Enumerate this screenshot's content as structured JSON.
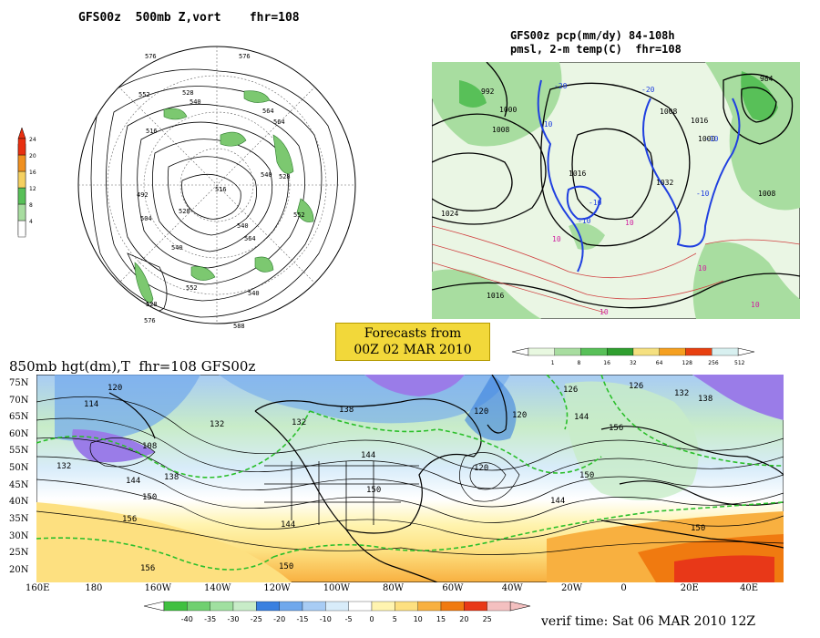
{
  "panels": {
    "polar": {
      "title": "GFS00z  500mb Z,vort    fhr=108",
      "scale_colors": [
        "#ffffff",
        "#a8dda0",
        "#58c058",
        "#f5d060",
        "#f09020",
        "#e83010"
      ],
      "scale_ticks": [
        "4",
        "8",
        "12",
        "16",
        "20",
        "24"
      ],
      "contour_labels": [
        "576",
        "576",
        "552",
        "528",
        "540",
        "516",
        "564",
        "564",
        "528",
        "540",
        "492",
        "504",
        "516",
        "528",
        "540",
        "552",
        "564",
        "540",
        "552",
        "540",
        "528",
        "588",
        "576"
      ]
    },
    "pcp": {
      "title_line1": "GFS00z pcp(mm/dy) 84-108h",
      "title_line2": "pmsl, 2-m temp(C)  fhr=108",
      "scale_colors": [
        "#e8f8e0",
        "#a8dda0",
        "#58c058",
        "#2f9f2f",
        "#f5e080",
        "#f5a020",
        "#e84010",
        "#d8f0f0"
      ],
      "scale_ticks": [
        "1",
        "8",
        "16",
        "32",
        "64",
        "128",
        "256",
        "512"
      ],
      "pressure_labels": [
        "992",
        "1000",
        "1008",
        "1016",
        "1024",
        "1032",
        "1008",
        "1016",
        "984",
        "1000",
        "1008",
        "1016"
      ],
      "temp_labels": [
        "-20",
        "-10",
        "-10",
        "-10",
        "-20",
        "-10",
        "-10",
        "10",
        "10",
        "10",
        "10",
        "10"
      ]
    },
    "banner": {
      "line1": "Forecasts from",
      "line2": "00Z 02 MAR 2010"
    },
    "map850": {
      "title": "850mb hgt(dm),T  fhr=108 GFS00z",
      "lat_labels": [
        "75N",
        "70N",
        "65N",
        "60N",
        "55N",
        "50N",
        "45N",
        "40N",
        "35N",
        "30N",
        "25N",
        "20N"
      ],
      "lon_labels": [
        "160E",
        "180",
        "160W",
        "140W",
        "120W",
        "100W",
        "80W",
        "60W",
        "40W",
        "20W",
        "0",
        "20E",
        "40E"
      ],
      "height_labels": [
        "120",
        "114",
        "108",
        "132",
        "138",
        "144",
        "150",
        "156",
        "132",
        "144",
        "156",
        "150",
        "120",
        "126",
        "120",
        "132",
        "138",
        "150",
        "144",
        "120",
        "126",
        "132",
        "138",
        "144",
        "156",
        "150",
        "144",
        "150"
      ],
      "temp_scale_colors": [
        "#40c040",
        "#70d070",
        "#a0e0a0",
        "#c8ecc8",
        "#3a80e0",
        "#70a8ec",
        "#a8ccf4",
        "#d8ecfa",
        "#ffffff",
        "#fff4b0",
        "#fde080",
        "#f8b040",
        "#f07a10",
        "#e83818",
        "#f4c0c0"
      ],
      "temp_scale_ticks": [
        "-40",
        "-35",
        "-30",
        "-25",
        "-20",
        "-15",
        "-10",
        "-5",
        "0",
        "5",
        "10",
        "15",
        "20",
        "25"
      ]
    },
    "verif": {
      "text": "verif time: Sat 06 MAR 2010 12Z"
    }
  }
}
